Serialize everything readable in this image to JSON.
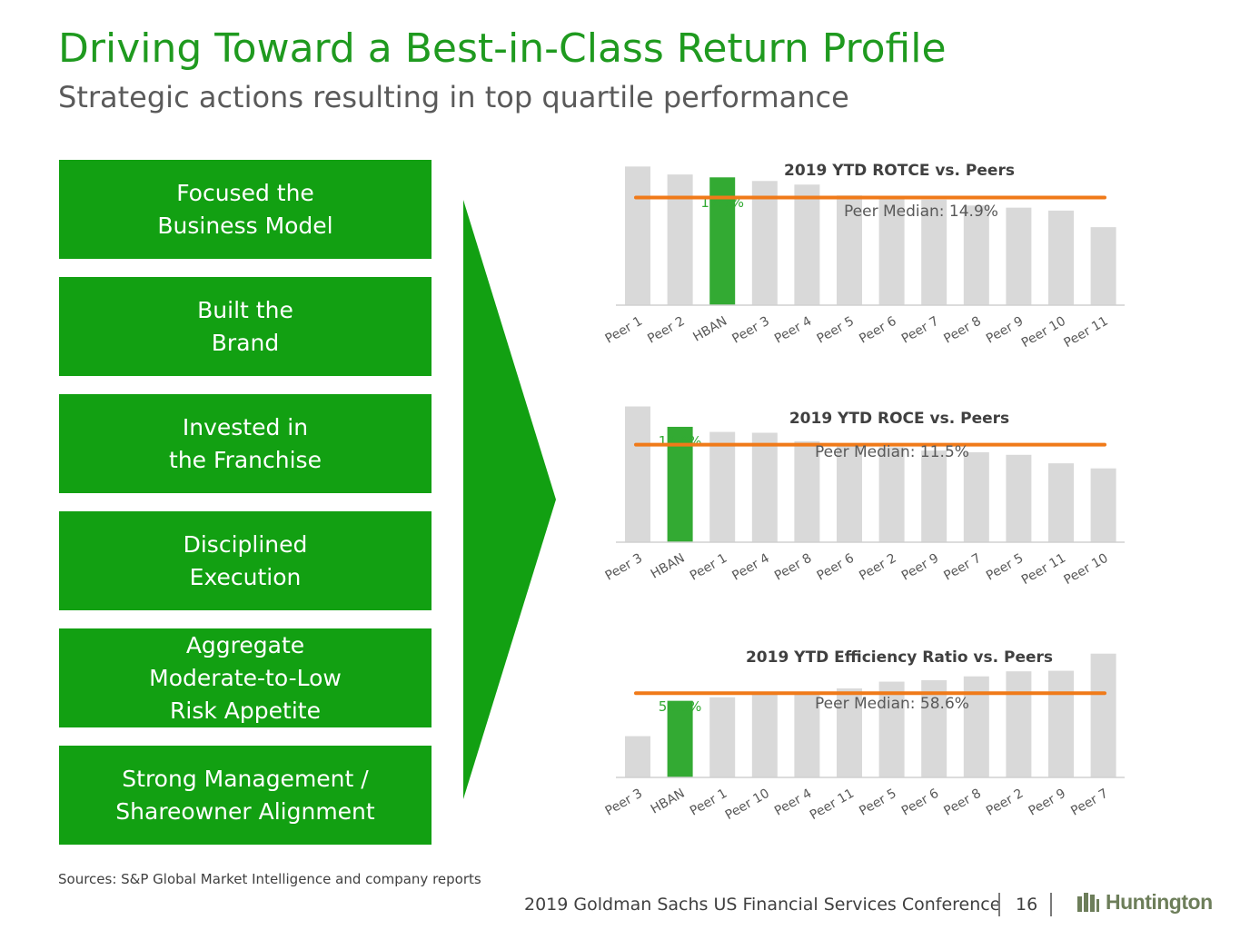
{
  "header": {
    "title": "Driving Toward a Best-in-Class Return Profile",
    "subtitle": "Strategic actions resulting in top quartile performance"
  },
  "pillars": [
    {
      "lines": [
        "Focused the",
        "Business Model"
      ]
    },
    {
      "lines": [
        "Built the",
        "Brand"
      ]
    },
    {
      "lines": [
        "Invested in",
        "the Franchise"
      ]
    },
    {
      "lines": [
        "Disciplined",
        "Execution"
      ]
    },
    {
      "lines": [
        "Aggregate",
        "Moderate-to-Low",
        "Risk Appetite"
      ]
    },
    {
      "lines": [
        "Strong Management /",
        "Shareowner Alignment"
      ]
    }
  ],
  "colors": {
    "brand_green": "#12a012",
    "highlight_bar": "#33aa33",
    "peer_bar": "#d9d9d9",
    "median_line": "#f07a19",
    "title_green": "#1f9a1f"
  },
  "chart_data": [
    {
      "type": "bar",
      "title": "2019 YTD ROTCE vs. Peers",
      "categories": [
        "Peer 1",
        "Peer 2",
        "HBAN",
        "Peer 3",
        "Peer 4",
        "Peer 5",
        "Peer 6",
        "Peer 7",
        "Peer 8",
        "Peer 9",
        "Peer 10",
        "Peer 11"
      ],
      "values": [
        19.2,
        18.1,
        17.7,
        17.2,
        16.7,
        15.2,
        15.0,
        14.6,
        13.8,
        13.5,
        13.1,
        10.8
      ],
      "highlight": "HBAN",
      "highlight_label": "17.7%",
      "median": 14.9,
      "median_label": "Peer Median: 14.9%",
      "ylim": [
        0,
        20
      ]
    },
    {
      "type": "bar",
      "title": "2019 YTD ROCE vs. Peers",
      "categories": [
        "Peer 3",
        "HBAN",
        "Peer 1",
        "Peer 4",
        "Peer 8",
        "Peer 6",
        "Peer 2",
        "Peer 9",
        "Peer 7",
        "Peer 5",
        "Peer 11",
        "Peer 10"
      ],
      "values": [
        16.0,
        13.6,
        13.0,
        12.9,
        11.9,
        11.6,
        11.2,
        10.8,
        10.6,
        10.3,
        9.3,
        8.7
      ],
      "highlight": "HBAN",
      "highlight_label": "13.6%",
      "median": 11.5,
      "median_label": "Peer Median: 11.5%",
      "ylim": [
        0,
        16.7
      ]
    },
    {
      "type": "bar",
      "title": "2019 YTD Efficiency Ratio vs. Peers",
      "categories": [
        "Peer 3",
        "HBAN",
        "Peer 1",
        "Peer 10",
        "Peer 4",
        "Peer 11",
        "Peer 5",
        "Peer 6",
        "Peer 8",
        "Peer 2",
        "Peer 9",
        "Peer 7"
      ],
      "values": [
        44.0,
        56.0,
        57.2,
        58.4,
        59.0,
        60.2,
        62.5,
        63.0,
        64.3,
        66.0,
        66.2,
        72.0
      ],
      "highlight": "HBAN",
      "highlight_label": "56.0%",
      "median": 58.6,
      "median_label": "Peer Median: 58.6%",
      "ylim": [
        30,
        75
      ]
    }
  ],
  "footer": {
    "sources": "Sources: S&P Global Market Intelligence and company reports",
    "conference": "2019 Goldman Sachs US Financial Services Conference",
    "page": "16",
    "logo": "Huntington"
  }
}
